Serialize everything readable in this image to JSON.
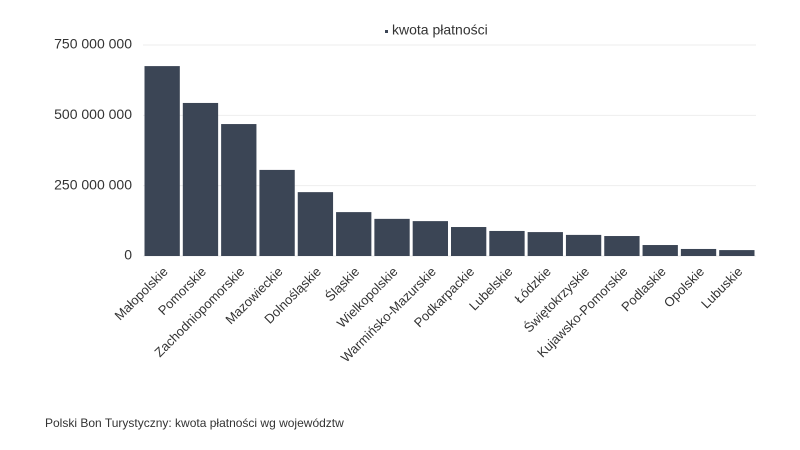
{
  "chart_data": {
    "type": "bar",
    "caption": "Polski Bon Turystyczny: kwota płatności wg województw",
    "categories": [
      "Małopolskie",
      "Pomorskie",
      "Zachodniopomorskie",
      "Mazowieckie",
      "Dolnośląskie",
      "Śląskie",
      "Wielkopolskie",
      "Warmińsko-Mazurskie",
      "Podkarpackie",
      "Lubelskie",
      "Łódzkie",
      "Świętokrzyskie",
      "Kujawsko-Pomorskie",
      "Podlaskie",
      "Opolskie",
      "Lubuskie"
    ],
    "series": [
      {
        "name": "kwota płatności",
        "color": "#3b4555",
        "values": [
          675000000,
          544000000,
          469000000,
          306000000,
          227000000,
          156000000,
          132000000,
          124000000,
          103000000,
          89000000,
          85000000,
          75000000,
          71000000,
          39000000,
          25000000,
          21000000
        ]
      }
    ],
    "ylim": [
      0,
      750000000
    ],
    "yticks": [
      0,
      {
        "value": 250000000,
        "label": "250 000 000"
      },
      {
        "value": 500000000,
        "label": "500 000 000"
      },
      {
        "value": 750000000,
        "label": "750 000 000"
      }
    ],
    "grid": true,
    "legend": "top"
  }
}
